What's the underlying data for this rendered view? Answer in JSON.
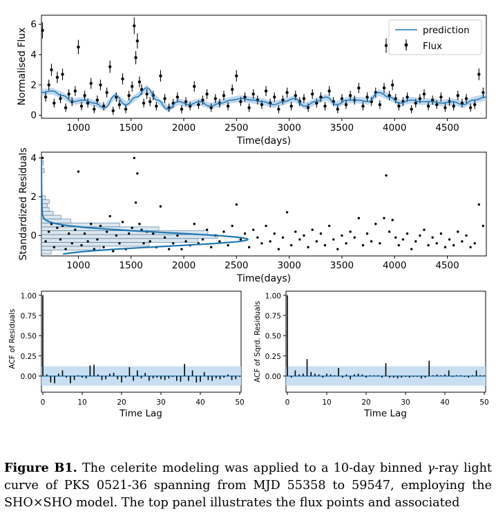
{
  "chart_data": [
    {
      "type": "scatter",
      "panel": "light-curve",
      "xlabel": "Time(days)",
      "ylabel": "Normalised Flux",
      "xlim": [
        650,
        4870
      ],
      "ylim": [
        -0.2,
        6.6
      ],
      "xticks": [
        1000,
        1500,
        2000,
        2500,
        3000,
        3500,
        4000,
        4500
      ],
      "yticks": [
        0,
        2,
        4,
        6
      ],
      "legend": {
        "placement": "top-right",
        "entries": [
          "prediction",
          "Flux"
        ]
      },
      "series": [
        {
          "name": "prediction",
          "kind": "line-with-band",
          "x": [
            650,
            750,
            850,
            950,
            1050,
            1150,
            1250,
            1350,
            1450,
            1550,
            1650,
            1750,
            1850,
            1950,
            2050,
            2150,
            2250,
            2350,
            2450,
            2550,
            2650,
            2750,
            2850,
            2950,
            3050,
            3150,
            3250,
            3350,
            3450,
            3550,
            3650,
            3750,
            3850,
            3950,
            4050,
            4150,
            4250,
            4350,
            4450,
            4550,
            4650,
            4750,
            4870
          ],
          "y": [
            1.5,
            1.6,
            1.3,
            0.9,
            1.0,
            0.8,
            0.5,
            1.3,
            0.7,
            1.2,
            1.8,
            1.0,
            0.4,
            0.9,
            0.7,
            0.9,
            0.6,
            0.8,
            1.0,
            1.1,
            1.0,
            0.9,
            0.7,
            0.9,
            1.1,
            0.6,
            0.9,
            1.2,
            0.7,
            1.0,
            1.0,
            0.9,
            1.5,
            1.2,
            0.8,
            1.0,
            0.9,
            0.9,
            0.8,
            0.9,
            0.7,
            1.0,
            1.2
          ]
        },
        {
          "name": "Flux",
          "kind": "points-with-errorbars",
          "x": [
            660,
            690,
            720,
            745,
            770,
            800,
            830,
            850,
            880,
            910,
            940,
            970,
            1000,
            1030,
            1060,
            1090,
            1120,
            1150,
            1180,
            1210,
            1240,
            1270,
            1300,
            1330,
            1360,
            1390,
            1420,
            1450,
            1480,
            1510,
            1530,
            1545,
            1560,
            1580,
            1600,
            1620,
            1650,
            1680,
            1710,
            1740,
            1780,
            1820,
            1860,
            1900,
            1940,
            1980,
            2020,
            2060,
            2100,
            2140,
            2180,
            2220,
            2260,
            2300,
            2340,
            2380,
            2420,
            2460,
            2500,
            2540,
            2580,
            2620,
            2660,
            2700,
            2740,
            2780,
            2820,
            2860,
            2900,
            2940,
            2980,
            3020,
            3060,
            3100,
            3140,
            3180,
            3220,
            3260,
            3300,
            3340,
            3380,
            3420,
            3460,
            3500,
            3540,
            3580,
            3620,
            3660,
            3700,
            3740,
            3780,
            3820,
            3860,
            3900,
            3920,
            3950,
            3980,
            4010,
            4040,
            4080,
            4120,
            4160,
            4200,
            4240,
            4280,
            4320,
            4360,
            4400,
            4440,
            4480,
            4520,
            4560,
            4600,
            4640,
            4680,
            4720,
            4760,
            4800,
            4840
          ],
          "y": [
            5.6,
            1.2,
            2.0,
            3.0,
            0.8,
            2.5,
            1.1,
            2.7,
            0.5,
            1.4,
            0.9,
            1.6,
            4.5,
            0.6,
            1.3,
            0.8,
            2.1,
            0.4,
            1.0,
            2.0,
            0.6,
            1.5,
            3.2,
            0.3,
            1.2,
            0.7,
            2.4,
            0.4,
            1.3,
            1.9,
            5.9,
            3.8,
            4.9,
            2.2,
            1.7,
            0.8,
            1.4,
            0.9,
            1.3,
            0.6,
            2.6,
            1.1,
            0.5,
            0.8,
            1.2,
            0.4,
            0.9,
            0.6,
            1.9,
            0.7,
            1.0,
            1.4,
            0.5,
            1.1,
            0.8,
            1.3,
            0.6,
            1.7,
            2.6,
            0.9,
            1.2,
            0.5,
            1.4,
            1.0,
            0.7,
            1.6,
            0.8,
            1.2,
            0.4,
            1.0,
            1.5,
            0.6,
            1.3,
            0.9,
            1.1,
            0.5,
            1.4,
            0.8,
            1.2,
            0.6,
            1.6,
            0.9,
            0.4,
            1.1,
            0.7,
            1.3,
            1.0,
            1.8,
            0.6,
            1.2,
            0.9,
            1.5,
            0.7,
            1.8,
            4.6,
            1.3,
            2.0,
            1.1,
            0.6,
            0.9,
            1.2,
            0.4,
            0.8,
            1.1,
            1.4,
            0.6,
            1.0,
            0.7,
            1.2,
            0.5,
            0.9,
            0.6,
            1.3,
            0.8,
            1.1,
            0.5,
            0.7,
            2.7,
            1.5
          ]
        }
      ]
    },
    {
      "type": "scatter",
      "panel": "residuals",
      "xlabel": "Time(days)",
      "ylabel": "Standardized Residuals",
      "xlim": [
        650,
        4870
      ],
      "ylim": [
        -1.05,
        4.3
      ],
      "xticks": [
        1000,
        1500,
        2000,
        2500,
        3000,
        3500,
        4000,
        4500
      ],
      "yticks": [
        0,
        2,
        4
      ],
      "series": [
        {
          "name": "residuals",
          "kind": "points",
          "x": [
            660,
            690,
            720,
            745,
            770,
            800,
            830,
            850,
            880,
            910,
            940,
            970,
            1000,
            1030,
            1060,
            1090,
            1120,
            1150,
            1180,
            1210,
            1240,
            1270,
            1300,
            1330,
            1360,
            1390,
            1420,
            1450,
            1480,
            1510,
            1530,
            1545,
            1560,
            1580,
            1600,
            1620,
            1650,
            1680,
            1710,
            1740,
            1780,
            1820,
            1860,
            1900,
            1940,
            1980,
            2020,
            2060,
            2100,
            2140,
            2180,
            2220,
            2260,
            2300,
            2340,
            2380,
            2420,
            2460,
            2500,
            2540,
            2580,
            2620,
            2660,
            2700,
            2740,
            2780,
            2820,
            2860,
            2900,
            2940,
            2980,
            3020,
            3060,
            3100,
            3140,
            3180,
            3220,
            3260,
            3300,
            3340,
            3380,
            3420,
            3460,
            3500,
            3540,
            3580,
            3620,
            3660,
            3700,
            3740,
            3780,
            3820,
            3860,
            3900,
            3920,
            3950,
            3980,
            4010,
            4040,
            4080,
            4120,
            4160,
            4200,
            4240,
            4280,
            4320,
            4360,
            4400,
            4440,
            4480,
            4520,
            4560,
            4600,
            4640,
            4680,
            4720,
            4760,
            4800,
            4840
          ],
          "y": [
            4.0,
            -0.3,
            0.2,
            0.6,
            -0.6,
            0.4,
            -0.2,
            0.5,
            -0.7,
            0.1,
            -0.4,
            0.3,
            3.3,
            -0.5,
            0.1,
            -0.3,
            0.6,
            -0.7,
            -0.2,
            0.5,
            -0.6,
            0.2,
            1.0,
            -0.8,
            0.0,
            -0.4,
            0.7,
            -0.7,
            0.1,
            0.4,
            4.0,
            1.7,
            3.2,
            0.6,
            0.3,
            -0.4,
            0.2,
            -0.3,
            0.1,
            -0.6,
            1.5,
            -0.1,
            -0.7,
            -0.4,
            0.0,
            -0.7,
            -0.3,
            -0.5,
            0.6,
            -0.4,
            -0.2,
            0.3,
            -0.6,
            0.0,
            -0.3,
            0.2,
            -0.5,
            0.5,
            1.6,
            -0.2,
            0.1,
            -0.6,
            0.3,
            -0.1,
            -0.4,
            0.5,
            -0.3,
            0.1,
            -0.7,
            -0.1,
            1.2,
            -0.5,
            0.2,
            -0.2,
            0.0,
            -0.6,
            0.3,
            -0.3,
            0.1,
            -0.5,
            0.5,
            -0.2,
            -0.7,
            0.0,
            -0.4,
            0.2,
            -0.1,
            0.9,
            -0.5,
            0.1,
            -0.3,
            0.6,
            -0.4,
            0.9,
            3.1,
            0.2,
            0.8,
            -0.1,
            -0.5,
            -0.2,
            0.1,
            -0.7,
            -0.3,
            0.0,
            0.3,
            -0.5,
            -0.1,
            -0.4,
            0.1,
            -0.6,
            -0.2,
            -0.5,
            0.2,
            -0.3,
            0.0,
            -0.6,
            -0.4,
            1.6,
            0.5
          ]
        },
        {
          "name": "histogram",
          "kind": "horizontal-histogram",
          "bins": [
            -0.95,
            -0.75,
            -0.55,
            -0.35,
            -0.15,
            0.05,
            0.25,
            0.45,
            0.65,
            0.85,
            1.05,
            1.25,
            1.45,
            1.65,
            1.85,
            2.05,
            2.25,
            2.45,
            2.65,
            2.85,
            3.05,
            3.25,
            3.45,
            3.65,
            3.85,
            4.05
          ],
          "counts": [
            10,
            60,
            110,
            160,
            180,
            170,
            120,
            80,
            30,
            20,
            12,
            8,
            6,
            8,
            4,
            0,
            0,
            0,
            0,
            0,
            0,
            3,
            0,
            2,
            0,
            2
          ]
        },
        {
          "name": "normal-pdf",
          "kind": "density-curve"
        }
      ]
    },
    {
      "type": "bar",
      "panel": "acf-residuals",
      "xlabel": "Time Lag",
      "ylabel": "ACF of Residuals",
      "xlim": [
        0,
        50
      ],
      "ylim": [
        -0.2,
        1.05
      ],
      "xticks": [
        0,
        10,
        20,
        30,
        40,
        50
      ],
      "yticks": [
        "0.00",
        "0.25",
        "0.50",
        "0.75",
        "1.00"
      ],
      "conf_band": [
        -0.12,
        0.12
      ],
      "lags": [
        0,
        1,
        2,
        3,
        4,
        5,
        6,
        7,
        8,
        9,
        10,
        11,
        12,
        13,
        14,
        15,
        16,
        17,
        18,
        19,
        20,
        21,
        22,
        23,
        24,
        25,
        26,
        27,
        28,
        29,
        30,
        31,
        32,
        33,
        34,
        35,
        36,
        37,
        38,
        39,
        40,
        41,
        42,
        43,
        44,
        45,
        46,
        47,
        48,
        49,
        50
      ],
      "values": [
        1.0,
        0.02,
        -0.08,
        -0.09,
        0.03,
        0.07,
        -0.02,
        -0.09,
        -0.05,
        0.01,
        -0.02,
        -0.03,
        0.13,
        0.14,
        0.02,
        -0.05,
        -0.04,
        0.03,
        0.04,
        -0.04,
        -0.08,
        -0.02,
        0.11,
        -0.06,
        0.07,
        -0.03,
        0.04,
        -0.06,
        -0.03,
        -0.02,
        -0.04,
        -0.05,
        -0.03,
        -0.01,
        -0.06,
        -0.07,
        0.15,
        -0.06,
        0.07,
        -0.08,
        -0.07,
        0.05,
        -0.05,
        -0.06,
        -0.03,
        -0.04,
        -0.02,
        0.02,
        -0.05,
        -0.04,
        -0.01
      ]
    },
    {
      "type": "bar",
      "panel": "acf-squared-residuals",
      "xlabel": "Time Lag",
      "ylabel": "ACF of Sqrd. Residuals",
      "xlim": [
        0,
        50
      ],
      "ylim": [
        -0.2,
        1.05
      ],
      "xticks": [
        0,
        10,
        20,
        30,
        40,
        50
      ],
      "yticks": [
        "0.00",
        "0.25",
        "0.50",
        "0.75",
        "1.00"
      ],
      "conf_band": [
        -0.12,
        0.12
      ],
      "lags": [
        0,
        1,
        2,
        3,
        4,
        5,
        6,
        7,
        8,
        9,
        10,
        11,
        12,
        13,
        14,
        15,
        16,
        17,
        18,
        19,
        20,
        21,
        22,
        23,
        24,
        25,
        26,
        27,
        28,
        29,
        30,
        31,
        32,
        33,
        34,
        35,
        36,
        37,
        38,
        39,
        40,
        41,
        42,
        43,
        44,
        45,
        46,
        47,
        48,
        49,
        50
      ],
      "values": [
        1.0,
        -0.02,
        0.07,
        0.02,
        0.03,
        0.21,
        0.05,
        0.03,
        0.02,
        -0.02,
        0.03,
        0.02,
        0.01,
        0.1,
        -0.02,
        0.02,
        -0.04,
        0.02,
        0.03,
        0.02,
        -0.02,
        0.01,
        0.01,
        0.01,
        -0.02,
        0.16,
        -0.02,
        -0.02,
        -0.03,
        -0.02,
        -0.01,
        -0.02,
        -0.01,
        -0.01,
        -0.03,
        -0.02,
        0.19,
        0.01,
        0.02,
        0.01,
        0.02,
        0.07,
        -0.01,
        0.01,
        0.01,
        -0.01,
        -0.02,
        0.01,
        0.07,
        0.01,
        0.01
      ]
    }
  ],
  "caption": {
    "label": "Figure B1.",
    "text_1": " The celerite modeling was applied to a 10-day binned ",
    "symbol": "γ",
    "text_2": "-ray light curve of PKS 0521-36 spanning from MJD 55358 to 59547, employing the SHO×SHO model. The top panel illustrates the flux points and associated"
  },
  "colors": {
    "prediction": "#1f77b4",
    "band": "#a6c8e8",
    "points": "#000000",
    "acf_band": "#c3dcef",
    "hist_fill": "#d5e2ec",
    "hist_edge": "#5a7fa0"
  }
}
